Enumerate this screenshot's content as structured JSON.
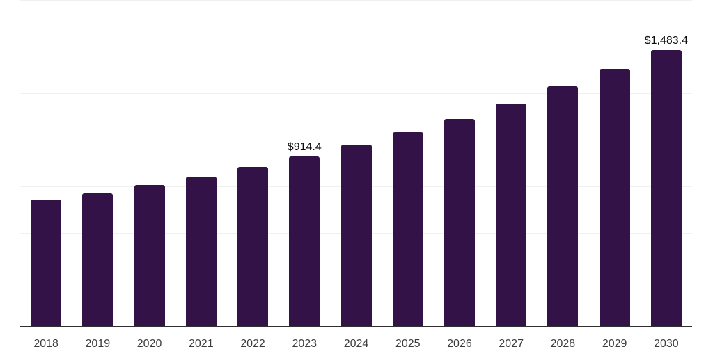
{
  "chart_data": {
    "type": "bar",
    "title": "",
    "xlabel": "",
    "ylabel": "",
    "categories": [
      "2018",
      "2019",
      "2020",
      "2021",
      "2022",
      "2023",
      "2024",
      "2025",
      "2026",
      "2027",
      "2028",
      "2029",
      "2030"
    ],
    "values": [
      684.0,
      715.0,
      763.0,
      807.0,
      858.0,
      914.4,
      978.0,
      1046.0,
      1117.0,
      1198.0,
      1290.0,
      1385.0,
      1483.4
    ],
    "data_labels": [
      {
        "category": "2023",
        "text": "$914.4"
      },
      {
        "category": "2030",
        "text": "$1,483.4"
      }
    ],
    "ylim": [
      0,
      1750
    ],
    "grid_step": 250,
    "grid": true,
    "legend": false,
    "y_tick_labels_visible": false,
    "colors": {
      "bar": "#331247",
      "gridline": "#f0f0f0",
      "axis_line": "#303030",
      "tick_label": "#3d3d3d",
      "data_label": "#0d0d0d",
      "background": "#ffffff"
    }
  }
}
